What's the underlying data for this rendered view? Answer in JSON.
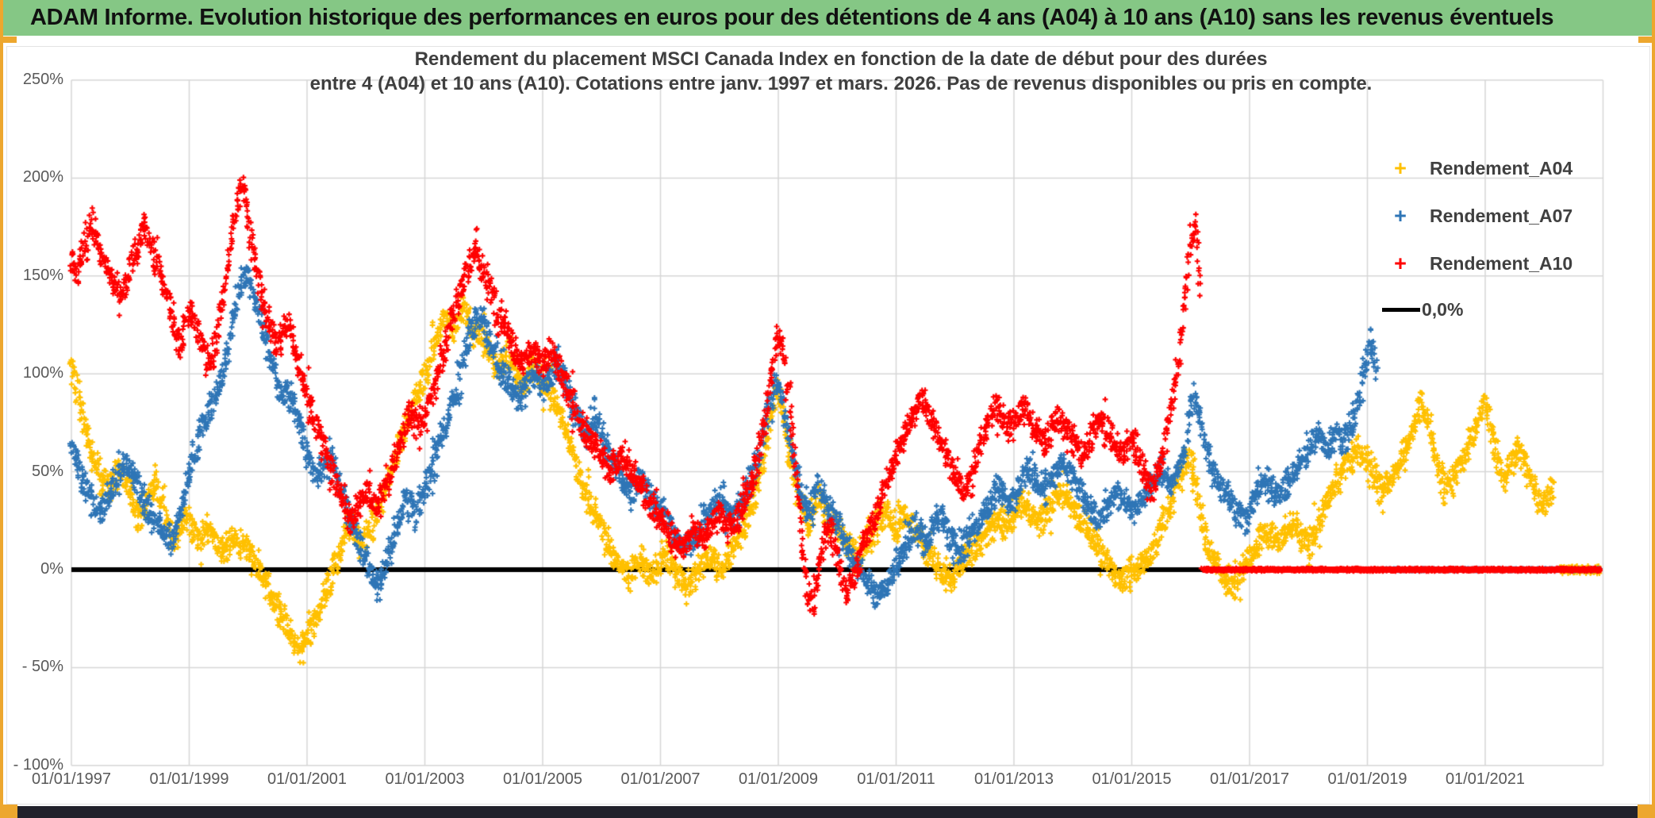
{
  "page": {
    "header": {
      "title": "ADAM Informe. Evolution historique des performances en euros pour des détentions de 4 ans (A04) à 10 ans (A10) sans les revenus éventuels",
      "bg_color": "#85C785",
      "text_color": "#111111"
    },
    "frame": {
      "accent_color": "#EDA72E",
      "bottom_bar_color": "#22222C",
      "background": "#FFFFFF"
    }
  },
  "chart_data": {
    "type": "scatter",
    "title_line1": "Rendement du placement MSCI Canada Index en fonction de la date de début pour des durées",
    "title_line2": "entre 4 (A04) et 10 ans (A10). Cotations entre janv. 1997 et mars. 2026. Pas de revenus disponibles ou pris en compte.",
    "grid": true,
    "legend_position": "right",
    "colors": {
      "gridline": "#D6D6D6",
      "axis_text": "#595959",
      "title_text": "#3F3F3F",
      "zero_line": "#000000"
    },
    "x_axis": {
      "min_year": 1997.0,
      "max_year": 2023.0,
      "tick_years": [
        1997,
        1999,
        2001,
        2003,
        2005,
        2007,
        2009,
        2011,
        2013,
        2015,
        2017,
        2019,
        2021
      ],
      "tick_labels": [
        "01/01/1997",
        "01/01/1999",
        "01/01/2001",
        "01/01/2003",
        "01/01/2005",
        "01/01/2007",
        "01/01/2009",
        "01/01/2011",
        "01/01/2013",
        "01/01/2015",
        "01/01/2017",
        "01/01/2019",
        "01/01/2021"
      ]
    },
    "y_axis": {
      "min": -100,
      "max": 250,
      "unit": "%",
      "tick_values": [
        250,
        200,
        150,
        100,
        50,
        0,
        -50,
        -100
      ],
      "tick_labels": [
        "250%",
        "200%",
        "150%",
        "100%",
        "50%",
        "0%",
        "- 50%",
        "- 100%"
      ]
    },
    "zero_line": {
      "label": "0,0%",
      "color": "#000000",
      "value": 0
    },
    "series": [
      {
        "name": "Rendement_A04",
        "color": "#FFC000",
        "marker": "plus",
        "monthly": {
          "start_year": 1997.0,
          "step_years": 0.0833333,
          "values": [
            105,
            95,
            82,
            72,
            62,
            52,
            44,
            46,
            41,
            48,
            52,
            46,
            38,
            31,
            26,
            32,
            38,
            42,
            38,
            30,
            22,
            16,
            20,
            28,
            25,
            19,
            14,
            18,
            22,
            16,
            12,
            8,
            12,
            16,
            12,
            14,
            10,
            6,
            2,
            -4,
            -10,
            -14,
            -18,
            -24,
            -30,
            -36,
            -40,
            -38,
            -34,
            -29,
            -23,
            -17,
            -10,
            -3,
            4,
            12,
            20,
            26,
            18,
            12,
            16,
            22,
            28,
            34,
            41,
            48,
            56,
            64,
            72,
            80,
            88,
            94,
            100,
            108,
            116,
            124,
            130,
            126,
            122,
            128,
            134,
            126,
            120,
            124,
            118,
            112,
            106,
            102,
            108,
            112,
            104,
            98,
            94,
            98,
            104,
            100,
            96,
            92,
            88,
            83,
            77,
            69,
            61,
            52,
            44,
            38,
            32,
            28,
            22,
            16,
            10,
            6,
            2,
            0,
            -2,
            2,
            6,
            2,
            -2,
            0,
            4,
            8,
            4,
            0,
            -4,
            -8,
            -6,
            -2,
            0,
            4,
            8,
            4,
            0,
            4,
            8,
            12,
            16,
            22,
            28,
            36,
            46,
            58,
            72,
            84,
            92,
            78,
            62,
            50,
            40,
            30,
            22,
            28,
            38,
            34,
            28,
            24,
            22,
            18,
            12,
            8,
            6,
            10,
            14,
            18,
            22,
            26,
            30,
            26,
            22,
            26,
            28,
            24,
            20,
            16,
            12,
            8,
            4,
            0,
            -4,
            -6,
            -2,
            2,
            6,
            10,
            12,
            14,
            16,
            20,
            24,
            26,
            22,
            24,
            28,
            32,
            34,
            32,
            28,
            24,
            26,
            30,
            34,
            38,
            40,
            36,
            32,
            28,
            24,
            20,
            16,
            12,
            8,
            4,
            0,
            -4,
            -6,
            -4,
            -2,
            0,
            2,
            6,
            10,
            16,
            22,
            28,
            34,
            42,
            48,
            55,
            58,
            44,
            28,
            16,
            10,
            4,
            0,
            -4,
            -8,
            -6,
            -2,
            2,
            6,
            10,
            14,
            18,
            20,
            16,
            14,
            18,
            22,
            24,
            20,
            16,
            12,
            16,
            22,
            28,
            34,
            40,
            46,
            50,
            54,
            58,
            62,
            58,
            55,
            50,
            45,
            40,
            44,
            48,
            52,
            56,
            62,
            70,
            78,
            86,
            80,
            68,
            56,
            48,
            42,
            46,
            50,
            54,
            58,
            64,
            72,
            80,
            86,
            74,
            62,
            52,
            46,
            52,
            58,
            62,
            56,
            48,
            42,
            36,
            32,
            38,
            44
          ]
        },
        "zero_tail_from_year": 2022.25,
        "zero_tail_jitter_pct": 4
      },
      {
        "name": "Rendement_A07",
        "color": "#2E75B6",
        "marker": "plus",
        "monthly": {
          "start_year": 1997.0,
          "step_years": 0.0833333,
          "values": [
            62,
            55,
            48,
            42,
            36,
            32,
            30,
            34,
            38,
            44,
            50,
            54,
            50,
            44,
            38,
            34,
            30,
            26,
            22,
            18,
            14,
            18,
            26,
            38,
            50,
            58,
            66,
            74,
            80,
            86,
            94,
            102,
            114,
            128,
            142,
            150,
            148,
            140,
            132,
            124,
            114,
            104,
            94,
            88,
            92,
            86,
            78,
            68,
            60,
            52,
            46,
            50,
            54,
            58,
            50,
            42,
            34,
            26,
            18,
            10,
            4,
            -2,
            -8,
            -4,
            2,
            10,
            18,
            28,
            36,
            32,
            30,
            36,
            42,
            48,
            56,
            64,
            72,
            80,
            88,
            98,
            108,
            118,
            126,
            130,
            124,
            118,
            112,
            106,
            100,
            96,
            92,
            88,
            92,
            96,
            100,
            98,
            94,
            98,
            102,
            106,
            100,
            92,
            84,
            78,
            72,
            68,
            72,
            76,
            70,
            64,
            58,
            52,
            48,
            44,
            40,
            44,
            48,
            42,
            38,
            34,
            30,
            26,
            22,
            18,
            14,
            12,
            14,
            18,
            22,
            26,
            30,
            34,
            36,
            32,
            28,
            26,
            30,
            36,
            42,
            50,
            58,
            68,
            80,
            90,
            96,
            84,
            70,
            58,
            46,
            36,
            28,
            34,
            42,
            38,
            32,
            28,
            24,
            18,
            12,
            6,
            2,
            -2,
            -6,
            -10,
            -14,
            -12,
            -8,
            -4,
            2,
            8,
            14,
            18,
            22,
            18,
            14,
            18,
            24,
            28,
            22,
            16,
            12,
            8,
            12,
            16,
            20,
            24,
            28,
            32,
            38,
            42,
            38,
            34,
            38,
            44,
            50,
            54,
            50,
            44,
            40,
            44,
            48,
            52,
            56,
            52,
            46,
            42,
            38,
            34,
            30,
            26,
            28,
            32,
            36,
            40,
            36,
            32,
            28,
            32,
            36,
            40,
            44,
            48,
            52,
            48,
            44,
            48,
            54,
            62,
            82,
            88,
            76,
            64,
            54,
            48,
            44,
            40,
            36,
            32,
            28,
            26,
            32,
            36,
            40,
            42,
            44,
            40,
            38,
            42,
            46,
            50,
            54,
            58,
            62,
            66,
            70,
            66,
            62,
            66,
            70,
            66,
            70,
            76,
            84,
            96,
            110,
            116,
            98
          ]
        },
        "zero_tail_from_year": 2019.3,
        "zero_tail_jitter_pct": 1
      },
      {
        "name": "Rendement_A10",
        "color": "#FF0000",
        "marker": "plus",
        "monthly": {
          "start_year": 1997.0,
          "step_years": 0.0833333,
          "values": [
            158,
            152,
            160,
            170,
            178,
            172,
            162,
            156,
            150,
            144,
            138,
            146,
            154,
            162,
            170,
            176,
            168,
            160,
            152,
            144,
            134,
            124,
            116,
            124,
            132,
            126,
            118,
            110,
            104,
            112,
            124,
            140,
            158,
            176,
            190,
            196,
            178,
            164,
            150,
            138,
            128,
            120,
            114,
            120,
            126,
            118,
            108,
            98,
            90,
            82,
            74,
            66,
            58,
            52,
            44,
            38,
            32,
            26,
            30,
            36,
            40,
            36,
            32,
            36,
            42,
            50,
            58,
            66,
            74,
            80,
            76,
            72,
            78,
            86,
            94,
            102,
            112,
            122,
            132,
            140,
            148,
            156,
            164,
            158,
            150,
            144,
            138,
            132,
            126,
            120,
            114,
            108,
            104,
            108,
            112,
            108,
            104,
            108,
            112,
            106,
            98,
            92,
            86,
            80,
            74,
            70,
            66,
            62,
            58,
            54,
            50,
            54,
            58,
            54,
            50,
            46,
            42,
            38,
            34,
            30,
            26,
            22,
            18,
            14,
            12,
            14,
            18,
            22,
            20,
            16,
            20,
            24,
            28,
            24,
            20,
            24,
            28,
            34,
            40,
            48,
            58,
            72,
            90,
            108,
            122,
            112,
            92,
            66,
            38,
            10,
            -12,
            -16,
            -4,
            10,
            22,
            16,
            6,
            -6,
            -14,
            -8,
            2,
            10,
            18,
            24,
            30,
            36,
            44,
            52,
            58,
            64,
            70,
            76,
            82,
            88,
            84,
            78,
            72,
            66,
            60,
            54,
            48,
            44,
            40,
            46,
            54,
            62,
            70,
            78,
            84,
            80,
            76,
            72,
            76,
            80,
            84,
            80,
            74,
            68,
            64,
            68,
            74,
            78,
            74,
            70,
            66,
            62,
            58,
            62,
            68,
            74,
            78,
            72,
            66,
            62,
            58,
            62,
            66,
            60,
            52,
            44,
            40,
            48,
            58,
            70,
            84,
            98,
            118,
            144,
            170,
            178,
            136
          ]
        },
        "zero_tail_from_year": 2016.2,
        "zero_tail_jitter_pct": 1.5,
        "zero_tail_solid_line": true
      }
    ]
  }
}
